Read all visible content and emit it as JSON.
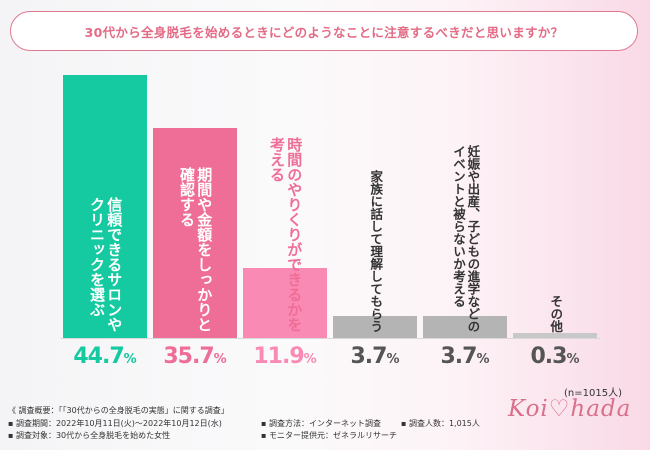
{
  "header": {
    "title": "30代から全身脱毛を始めるときにどのようなことに注意するべきだと思いますか？"
  },
  "chart_data": {
    "type": "bar",
    "title": "30代から全身脱毛を始めるときにどのようなことに注意するべきだと思いますか？",
    "categories": [
      "信頼できるサロンやクリニックを選ぶ",
      "期間や金額をしっかりと確認する",
      "時間のやりくりができるかを考える",
      "家族に話して理解してもらう",
      "妊娠や出産、子どもの進学などのイベントと被らないか考える",
      "その他"
    ],
    "label_lines": [
      [
        "信頼できるサロンや",
        "クリニックを選ぶ"
      ],
      [
        "期間や金額をしっかりと",
        "確認する"
      ],
      [
        "時間のやりくりができるかを",
        "考える"
      ],
      [
        "家族に話して理解してもらう"
      ],
      [
        "妊娠や出産、子どもの進学などの",
        "イベントと被らないか考える"
      ],
      [
        "その他"
      ]
    ],
    "values": [
      44.7,
      35.7,
      11.9,
      3.7,
      3.7,
      0.3
    ],
    "value_labels": [
      {
        "num": "44.7",
        "unit": "%"
      },
      {
        "num": "35.7",
        "unit": "%"
      },
      {
        "num": "11.9",
        "unit": "%"
      },
      {
        "num": "3.7",
        "unit": "%"
      },
      {
        "num": "3.7",
        "unit": "%"
      },
      {
        "num": "0.3",
        "unit": "%"
      }
    ],
    "colors": [
      "#15c9a0",
      "#ef6e97",
      "#f98ab4",
      "#b4b4b4",
      "#b4b4b4",
      "#c8c8c8"
    ],
    "value_colors": [
      "#15c9a0",
      "#ef6e97",
      "#f98ab4",
      "#555555",
      "#555555",
      "#555555"
    ],
    "label_colors": [
      "#ffffff",
      "#ffffff",
      "#ef6e97",
      "#333333",
      "#333333",
      "#333333"
    ],
    "ylim": [
      0,
      44.7
    ],
    "sample_note": "(n=1015人)"
  },
  "footer": {
    "survey_overview": "《 調査概要：「「30代からの全身脱毛の実態」に関する調査」",
    "period": "▪ 調査期間：2022年10月11日(火)～2022年10月12日(水)",
    "method": "▪ 調査方法：インターネット調査",
    "count": "▪ 調査人数：1,015人",
    "target": "▪ 調査対象：30代から全身脱毛を始めた女性",
    "provider": "▪ モニター提供元：ゼネラルリサーチ"
  },
  "logo": {
    "text": "Koi♡hada"
  }
}
